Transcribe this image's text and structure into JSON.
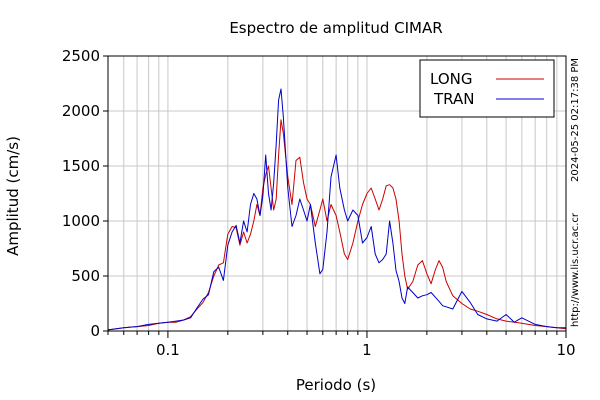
{
  "chart_data": {
    "type": "line",
    "title": "Espectro de amplitud CIMAR",
    "xlabel": "Periodo (s)",
    "ylabel": "Amplitud (cm/s)",
    "x_scale": "log",
    "xlim": [
      0.05,
      10
    ],
    "ylim": [
      0,
      2500
    ],
    "grid": true,
    "legend_position": "top-right",
    "x_ticks": [
      {
        "value": 0.1,
        "label": "0.1"
      },
      {
        "value": 1,
        "label": "1"
      },
      {
        "value": 10,
        "label": "10"
      }
    ],
    "y_ticks": [
      {
        "value": 0,
        "label": "0"
      },
      {
        "value": 500,
        "label": "500"
      },
      {
        "value": 1000,
        "label": "1000"
      },
      {
        "value": 1500,
        "label": "1500"
      },
      {
        "value": 2000,
        "label": "2000"
      },
      {
        "value": 2500,
        "label": "2500"
      }
    ],
    "series": [
      {
        "name": "LONG",
        "color": "#cc0000",
        "points": [
          [
            0.05,
            10
          ],
          [
            0.06,
            30
          ],
          [
            0.07,
            40
          ],
          [
            0.08,
            50
          ],
          [
            0.09,
            70
          ],
          [
            0.1,
            80
          ],
          [
            0.11,
            80
          ],
          [
            0.12,
            100
          ],
          [
            0.13,
            130
          ],
          [
            0.14,
            200
          ],
          [
            0.15,
            260
          ],
          [
            0.16,
            350
          ],
          [
            0.17,
            500
          ],
          [
            0.18,
            600
          ],
          [
            0.19,
            620
          ],
          [
            0.2,
            880
          ],
          [
            0.21,
            950
          ],
          [
            0.22,
            940
          ],
          [
            0.23,
            780
          ],
          [
            0.24,
            900
          ],
          [
            0.25,
            800
          ],
          [
            0.26,
            880
          ],
          [
            0.27,
            1000
          ],
          [
            0.28,
            1150
          ],
          [
            0.29,
            1050
          ],
          [
            0.3,
            1300
          ],
          [
            0.31,
            1420
          ],
          [
            0.32,
            1500
          ],
          [
            0.33,
            1300
          ],
          [
            0.34,
            1100
          ],
          [
            0.35,
            1200
          ],
          [
            0.36,
            1600
          ],
          [
            0.37,
            1920
          ],
          [
            0.38,
            1800
          ],
          [
            0.4,
            1400
          ],
          [
            0.42,
            1150
          ],
          [
            0.44,
            1550
          ],
          [
            0.46,
            1580
          ],
          [
            0.48,
            1350
          ],
          [
            0.5,
            1200
          ],
          [
            0.52,
            1150
          ],
          [
            0.55,
            950
          ],
          [
            0.58,
            1100
          ],
          [
            0.6,
            1200
          ],
          [
            0.63,
            1000
          ],
          [
            0.66,
            1150
          ],
          [
            0.7,
            1050
          ],
          [
            0.73,
            900
          ],
          [
            0.77,
            700
          ],
          [
            0.8,
            650
          ],
          [
            0.85,
            800
          ],
          [
            0.9,
            1000
          ],
          [
            0.95,
            1150
          ],
          [
            1.0,
            1250
          ],
          [
            1.05,
            1300
          ],
          [
            1.1,
            1200
          ],
          [
            1.15,
            1100
          ],
          [
            1.2,
            1200
          ],
          [
            1.25,
            1320
          ],
          [
            1.3,
            1330
          ],
          [
            1.35,
            1300
          ],
          [
            1.4,
            1200
          ],
          [
            1.45,
            1000
          ],
          [
            1.5,
            700
          ],
          [
            1.55,
            500
          ],
          [
            1.6,
            380
          ],
          [
            1.7,
            450
          ],
          [
            1.8,
            600
          ],
          [
            1.9,
            640
          ],
          [
            2.0,
            520
          ],
          [
            2.1,
            430
          ],
          [
            2.2,
            550
          ],
          [
            2.3,
            640
          ],
          [
            2.4,
            580
          ],
          [
            2.5,
            450
          ],
          [
            2.7,
            320
          ],
          [
            3.0,
            250
          ],
          [
            3.3,
            200
          ],
          [
            3.6,
            180
          ],
          [
            4.0,
            150
          ],
          [
            4.5,
            110
          ],
          [
            5.0,
            90
          ],
          [
            6.0,
            70
          ],
          [
            7.0,
            50
          ],
          [
            8.0,
            40
          ],
          [
            9.0,
            30
          ],
          [
            10.0,
            20
          ]
        ]
      },
      {
        "name": "TRAN",
        "color": "#0000cc",
        "points": [
          [
            0.05,
            10
          ],
          [
            0.06,
            30
          ],
          [
            0.07,
            40
          ],
          [
            0.08,
            60
          ],
          [
            0.09,
            70
          ],
          [
            0.1,
            80
          ],
          [
            0.11,
            90
          ],
          [
            0.12,
            100
          ],
          [
            0.13,
            120
          ],
          [
            0.14,
            210
          ],
          [
            0.15,
            290
          ],
          [
            0.16,
            330
          ],
          [
            0.17,
            540
          ],
          [
            0.18,
            580
          ],
          [
            0.19,
            460
          ],
          [
            0.2,
            780
          ],
          [
            0.21,
            900
          ],
          [
            0.22,
            960
          ],
          [
            0.23,
            800
          ],
          [
            0.24,
            1000
          ],
          [
            0.25,
            900
          ],
          [
            0.26,
            1150
          ],
          [
            0.27,
            1250
          ],
          [
            0.28,
            1200
          ],
          [
            0.29,
            1050
          ],
          [
            0.3,
            1230
          ],
          [
            0.31,
            1600
          ],
          [
            0.32,
            1250
          ],
          [
            0.33,
            1100
          ],
          [
            0.34,
            1350
          ],
          [
            0.35,
            1700
          ],
          [
            0.36,
            2100
          ],
          [
            0.37,
            2200
          ],
          [
            0.38,
            1950
          ],
          [
            0.4,
            1300
          ],
          [
            0.42,
            950
          ],
          [
            0.44,
            1050
          ],
          [
            0.46,
            1200
          ],
          [
            0.48,
            1100
          ],
          [
            0.5,
            1000
          ],
          [
            0.52,
            1150
          ],
          [
            0.55,
            800
          ],
          [
            0.58,
            520
          ],
          [
            0.6,
            560
          ],
          [
            0.63,
            900
          ],
          [
            0.66,
            1400
          ],
          [
            0.7,
            1600
          ],
          [
            0.73,
            1300
          ],
          [
            0.77,
            1100
          ],
          [
            0.8,
            1000
          ],
          [
            0.85,
            1100
          ],
          [
            0.9,
            1050
          ],
          [
            0.95,
            800
          ],
          [
            1.0,
            850
          ],
          [
            1.05,
            950
          ],
          [
            1.1,
            700
          ],
          [
            1.15,
            620
          ],
          [
            1.2,
            650
          ],
          [
            1.25,
            700
          ],
          [
            1.3,
            1000
          ],
          [
            1.35,
            800
          ],
          [
            1.4,
            550
          ],
          [
            1.45,
            450
          ],
          [
            1.5,
            300
          ],
          [
            1.55,
            250
          ],
          [
            1.6,
            400
          ],
          [
            1.7,
            350
          ],
          [
            1.8,
            300
          ],
          [
            1.9,
            320
          ],
          [
            2.0,
            330
          ],
          [
            2.1,
            350
          ],
          [
            2.2,
            310
          ],
          [
            2.3,
            270
          ],
          [
            2.4,
            230
          ],
          [
            2.5,
            220
          ],
          [
            2.7,
            200
          ],
          [
            3.0,
            360
          ],
          [
            3.3,
            260
          ],
          [
            3.6,
            150
          ],
          [
            4.0,
            110
          ],
          [
            4.5,
            90
          ],
          [
            5.0,
            150
          ],
          [
            5.5,
            80
          ],
          [
            6.0,
            120
          ],
          [
            7.0,
            60
          ],
          [
            8.0,
            40
          ],
          [
            9.0,
            30
          ],
          [
            10.0,
            30
          ]
        ]
      }
    ]
  },
  "side_annotations": {
    "timestamp": "2024-05-25 02:17:38 PM",
    "url": "http://www.lis.ucr.ac.cr"
  }
}
